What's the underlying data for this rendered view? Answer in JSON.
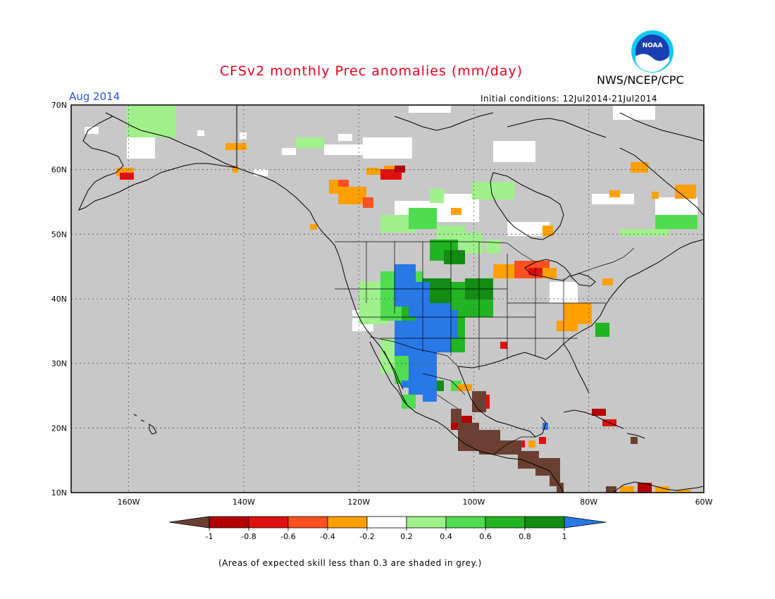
{
  "header": {
    "title": "CFSv2 monthly Prec anomalies (mm/day)",
    "agency": "NWS/NCEP/CPC",
    "forecast_month": "Aug 2014",
    "initial_conditions": "Initial conditions: 12Jul2014-21Jul2014",
    "logo_text": "NOAA"
  },
  "map": {
    "lat_labels": [
      "70N",
      "60N",
      "50N",
      "40N",
      "30N",
      "20N",
      "10N"
    ],
    "lon_labels": [
      "160W",
      "140W",
      "120W",
      "100W",
      "80W",
      "60W"
    ],
    "background_color": "#c8c8c8",
    "coastline_color": "#000000"
  },
  "legend": {
    "tick_labels": [
      "-1",
      "-0.8",
      "-0.6",
      "-0.4",
      "-0.2",
      "0.2",
      "0.4",
      "0.6",
      "0.8",
      "1"
    ],
    "colors": [
      "#6b3f32",
      "#b40000",
      "#e01010",
      "#ff5020",
      "#ffa000",
      "#ffffff",
      "#a0f08c",
      "#50dc50",
      "#22b422",
      "#128c12",
      "#2878e6"
    ]
  },
  "footnote": "(Areas of expected skill less than 0.3 are shaded in grey.)"
}
